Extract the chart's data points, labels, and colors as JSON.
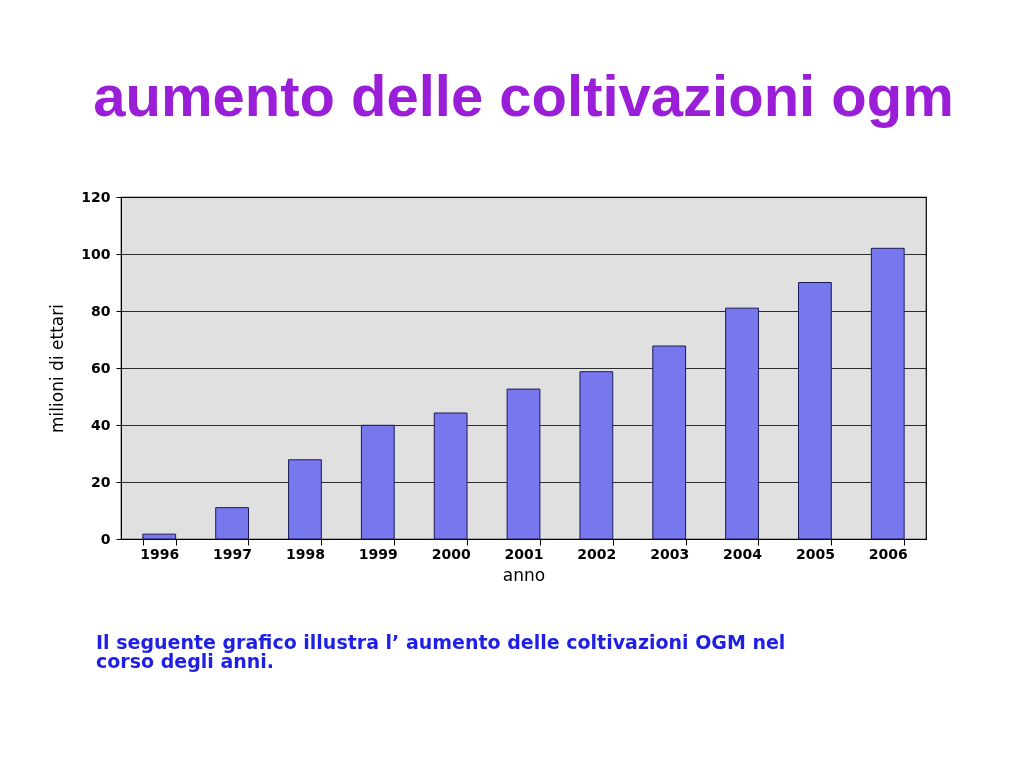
{
  "chart_data": {
    "type": "bar",
    "title": "aumento delle coltivazioni ogm",
    "xlabel": "anno",
    "ylabel": "milioni di ettari",
    "categories": [
      "1996",
      "1997",
      "1998",
      "1999",
      "2000",
      "2001",
      "2002",
      "2003",
      "2004",
      "2005",
      "2006"
    ],
    "values": [
      1.7,
      11,
      27.8,
      39.9,
      44.2,
      52.6,
      58.7,
      67.7,
      81,
      90,
      102
    ],
    "color": "#7878ee",
    "ylim": [
      0,
      120
    ],
    "yticks": [
      0,
      20,
      40,
      60,
      80,
      100,
      120
    ],
    "grid": "y",
    "annotations": [
      "Il seguente grafico illustra l’ aumento delle coltivazioni OGM nel corso degli anni."
    ]
  }
}
